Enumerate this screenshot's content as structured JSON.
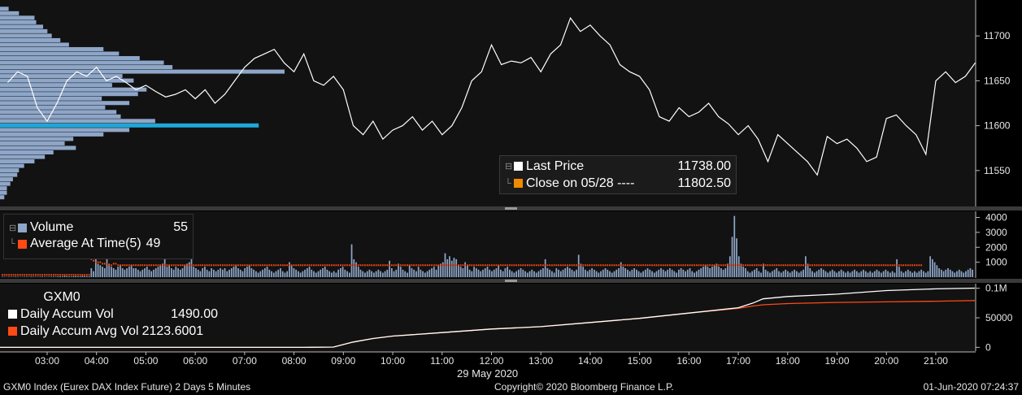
{
  "chart_data": [
    {
      "type": "line",
      "series": [
        {
          "name": "Last Price",
          "color": "#ffffff"
        }
      ],
      "x_ticks": [
        "03:00",
        "04:00",
        "05:00",
        "06:00",
        "07:00",
        "08:00",
        "09:00",
        "10:00",
        "11:00",
        "12:00",
        "13:00",
        "14:00",
        "15:00",
        "16:00",
        "17:00",
        "18:00",
        "19:00",
        "20:00",
        "21:00"
      ],
      "x": [
        2.2,
        2.4,
        2.6,
        2.8,
        3.0,
        3.2,
        3.4,
        3.6,
        3.8,
        4.0,
        4.2,
        4.4,
        4.6,
        4.8,
        5.0,
        5.2,
        5.4,
        5.6,
        5.8,
        6.0,
        6.2,
        6.4,
        6.6,
        6.8,
        7.0,
        7.2,
        7.4,
        7.6,
        7.8,
        8.0,
        8.2,
        8.4,
        8.6,
        8.8,
        9.0,
        9.2,
        9.4,
        9.6,
        9.8,
        10.0,
        10.2,
        10.4,
        10.6,
        10.8,
        11.0,
        11.2,
        11.4,
        11.6,
        11.8,
        12.0,
        12.2,
        12.4,
        12.6,
        12.8,
        13.0,
        13.2,
        13.4,
        13.6,
        13.8,
        14.0,
        14.2,
        14.4,
        14.6,
        14.8,
        15.0,
        15.2,
        15.4,
        15.6,
        15.8,
        16.0,
        16.2,
        16.4,
        16.6,
        16.8,
        17.0,
        17.2,
        17.4,
        17.6,
        17.8,
        18.0,
        18.2,
        18.4,
        18.6,
        18.8,
        19.0,
        19.2,
        19.4,
        19.6,
        19.8,
        20.0,
        20.2,
        20.4,
        20.6,
        20.8,
        21.0,
        21.2,
        21.4,
        21.6,
        21.8
      ],
      "y": [
        11648,
        11660,
        11655,
        11620,
        11605,
        11625,
        11650,
        11660,
        11655,
        11665,
        11650,
        11655,
        11648,
        11640,
        11645,
        11638,
        11632,
        11635,
        11640,
        11630,
        11640,
        11625,
        11635,
        11650,
        11665,
        11675,
        11680,
        11685,
        11670,
        11660,
        11680,
        11650,
        11645,
        11655,
        11640,
        11600,
        11590,
        11605,
        11585,
        11595,
        11600,
        11610,
        11595,
        11605,
        11590,
        11600,
        11620,
        11650,
        11660,
        11690,
        11668,
        11672,
        11670,
        11676,
        11660,
        11680,
        11690,
        11720,
        11705,
        11712,
        11700,
        11690,
        11668,
        11660,
        11655,
        11640,
        11610,
        11605,
        11620,
        11610,
        11615,
        11625,
        11610,
        11602,
        11590,
        11600,
        11585,
        11560,
        11590,
        11580,
        11570,
        11560,
        11545,
        11588,
        11580,
        11585,
        11575,
        11560,
        11565,
        11608,
        11612,
        11600,
        11590,
        11568,
        11650,
        11660,
        11648,
        11655,
        11670
      ],
      "ylim": [
        11510,
        11740
      ],
      "y_ticks": [
        11550,
        11600,
        11650,
        11700
      ],
      "volume_profile": {
        "price_levels": [
          11520,
          11525,
          11530,
          11535,
          11540,
          11545,
          11550,
          11555,
          11560,
          11565,
          11570,
          11575,
          11580,
          11585,
          11590,
          11595,
          11600,
          11605,
          11610,
          11615,
          11620,
          11625,
          11630,
          11635,
          11640,
          11645,
          11650,
          11655,
          11660,
          11665,
          11670,
          11675,
          11680,
          11685,
          11690,
          11695,
          11700,
          11705,
          11710,
          11715,
          11720,
          11725,
          11730
        ],
        "values": [
          5,
          8,
          8,
          12,
          15,
          20,
          22,
          28,
          40,
          52,
          62,
          88,
          75,
          85,
          120,
          150,
          300,
          180,
          140,
          135,
          122,
          150,
          118,
          160,
          170,
          130,
          155,
          142,
          330,
          200,
          190,
          162,
          138,
          120,
          80,
          70,
          60,
          55,
          50,
          42,
          40,
          22,
          10
        ],
        "poc_price": 11600,
        "color": "#8ea6c8",
        "poc_color": "#1ea7d8"
      },
      "legend": {
        "last_price_label": "Last Price",
        "last_price_value": "11738.00",
        "close_label": "Close on 05/28 ----",
        "close_value": "11802.50"
      }
    },
    {
      "type": "bar",
      "series": [
        {
          "name": "Volume",
          "color": "#8ea6c8"
        },
        {
          "name": "Average At Time(5)",
          "color": "#ff4a14"
        }
      ],
      "volume": [
        30,
        25,
        20,
        35,
        30,
        25,
        40,
        30,
        20,
        25,
        30,
        35,
        25,
        40,
        30,
        30,
        25,
        35,
        40,
        30,
        25,
        30,
        35,
        40,
        30,
        50,
        60,
        45,
        80,
        60,
        50,
        45,
        60,
        70,
        55,
        60,
        80,
        70,
        60,
        55,
        600,
        400,
        1200,
        900,
        800,
        700,
        600,
        1200,
        900,
        700,
        600,
        500,
        700,
        800,
        600,
        500,
        600,
        700,
        800,
        600,
        600,
        500,
        400,
        500,
        600,
        700,
        500,
        400,
        500,
        600,
        700,
        800,
        900,
        1200,
        700,
        800,
        600,
        500,
        700,
        600,
        500,
        600,
        800,
        900,
        1000,
        1200,
        700,
        600,
        500,
        400,
        600,
        700,
        500,
        400,
        600,
        500,
        400,
        500,
        600,
        500,
        600,
        400,
        500,
        600,
        700,
        800,
        600,
        500,
        400,
        600,
        700,
        800,
        600,
        500,
        400,
        300,
        400,
        500,
        600,
        700,
        500,
        400,
        300,
        400,
        500,
        600,
        400,
        300,
        400,
        1000,
        800,
        600,
        500,
        400,
        300,
        400,
        500,
        600,
        700,
        500,
        400,
        300,
        400,
        500,
        600,
        700,
        500,
        400,
        300,
        400,
        300,
        500,
        600,
        700,
        500,
        400,
        300,
        2200,
        1200,
        1000,
        700,
        500,
        400,
        300,
        400,
        500,
        400,
        300,
        400,
        500,
        400,
        300,
        400,
        500,
        1100,
        600,
        400,
        500,
        900,
        700,
        500,
        400,
        300,
        800,
        600,
        500,
        400,
        700,
        500,
        400,
        300,
        400,
        500,
        600,
        700,
        500,
        800,
        900,
        1000,
        1600,
        1200,
        1400,
        1100,
        1300,
        1200,
        800,
        700,
        600,
        1000,
        800,
        500,
        400,
        700,
        600,
        500,
        400,
        500,
        600,
        700,
        500,
        400,
        500,
        600,
        800,
        500,
        400,
        600,
        700,
        500,
        400,
        300,
        400,
        500,
        600,
        500,
        400,
        300,
        400,
        500,
        400,
        300,
        400,
        500,
        600,
        1200,
        600,
        500,
        400,
        300,
        600,
        500,
        400,
        500,
        600,
        700,
        600,
        500,
        400,
        500,
        1500,
        900,
        700,
        500,
        400,
        500,
        600,
        500,
        400,
        300,
        400,
        500,
        600,
        500,
        400,
        300,
        400,
        500,
        600,
        1000,
        700,
        600,
        500,
        400,
        500,
        600,
        500,
        400,
        300,
        400,
        500,
        600,
        500,
        400,
        300,
        400,
        500,
        600,
        500,
        400,
        500,
        600,
        500,
        400,
        300,
        500,
        600,
        500,
        400,
        500,
        600,
        400,
        300,
        400,
        500,
        600,
        700,
        800,
        700,
        600,
        700,
        800,
        900,
        700,
        600,
        500,
        600,
        900,
        1400,
        2700,
        4100,
        2600,
        1400,
        900,
        700,
        600,
        400,
        300,
        400,
        500,
        600,
        400,
        300,
        900,
        500,
        400,
        300,
        400,
        500,
        600,
        400,
        300,
        400,
        500,
        400,
        300,
        400,
        500,
        400,
        300,
        400,
        500,
        1400,
        900,
        600,
        400,
        300,
        400,
        500,
        600,
        500,
        400,
        300,
        400,
        500,
        400,
        300,
        400,
        500,
        400,
        300,
        400,
        300,
        400,
        500,
        400,
        300,
        400,
        500,
        400,
        300,
        400,
        300,
        400,
        500,
        400,
        300,
        400,
        500,
        400,
        300,
        400,
        300,
        1200,
        700,
        400,
        300,
        400,
        500,
        400,
        300,
        400,
        300,
        400,
        500,
        400,
        300,
        400,
        1400,
        1200,
        1000,
        800,
        600,
        500,
        400,
        500,
        600,
        500,
        400,
        300,
        400,
        500,
        400,
        300,
        400,
        500,
        600,
        500
      ],
      "average": [
        150,
        150,
        150,
        150,
        150,
        150,
        150,
        150,
        150,
        150,
        150,
        150,
        150,
        150,
        150,
        150,
        150,
        150,
        150,
        150,
        150,
        150,
        150,
        150,
        150,
        150,
        150,
        150,
        150,
        150,
        150,
        150,
        150,
        150,
        150,
        150,
        150,
        150,
        150,
        150,
        1200,
        1100,
        1000,
        1000,
        1000,
        900,
        900,
        900,
        800,
        800,
        900,
        900,
        800,
        800,
        800,
        800,
        800,
        800,
        800,
        800,
        800,
        800,
        800,
        800,
        800,
        800,
        800,
        800,
        800,
        800,
        800,
        800,
        800,
        800,
        800,
        800,
        800,
        800,
        800,
        800,
        800,
        800,
        800,
        800,
        800,
        800,
        800,
        800,
        800,
        800,
        800,
        800,
        800,
        800,
        800,
        800,
        800,
        800,
        800,
        800,
        800,
        800,
        800,
        800,
        800,
        800,
        800,
        800,
        800,
        800,
        800,
        800,
        800,
        800,
        800,
        800,
        800,
        800,
        800,
        800,
        800,
        800,
        800,
        800,
        800,
        800,
        800,
        800,
        800,
        800,
        800,
        800,
        800,
        800,
        800,
        800,
        800,
        800,
        800,
        800,
        800,
        800,
        800,
        800,
        800,
        800,
        800,
        800,
        800,
        800,
        800,
        800,
        800,
        800,
        800,
        800,
        800,
        800,
        800,
        800,
        800,
        800,
        800,
        800,
        800,
        800,
        800,
        800,
        800,
        800,
        800,
        800,
        800,
        800,
        800,
        800,
        800,
        800,
        800,
        800,
        800,
        800,
        800,
        800,
        800,
        800,
        800,
        800,
        800,
        800,
        800,
        800,
        800,
        800,
        800,
        800,
        800,
        800,
        800,
        800,
        800,
        800,
        800,
        800,
        800,
        800,
        800,
        800,
        800,
        800,
        800,
        800,
        800,
        800,
        800,
        800,
        800,
        800,
        800,
        800,
        800,
        800,
        800,
        800,
        800,
        800,
        800,
        800,
        800,
        800,
        800,
        800,
        800,
        800,
        800,
        800,
        800,
        800,
        800,
        800,
        800,
        800,
        800,
        800,
        800,
        800,
        800,
        800,
        800,
        800,
        800,
        800,
        800,
        800,
        800,
        800,
        800,
        800,
        800,
        800,
        800,
        800,
        800,
        800,
        800,
        800,
        800,
        800,
        800,
        800,
        800,
        800,
        800,
        800,
        800,
        800,
        800,
        800,
        800,
        800,
        800,
        800,
        800,
        800,
        800,
        800,
        800,
        800,
        800,
        800,
        800,
        800,
        800,
        800,
        800,
        800,
        800,
        800,
        800,
        800,
        800,
        800,
        800,
        800,
        800,
        800,
        800,
        800,
        800,
        800,
        800,
        800,
        800,
        800,
        800,
        800,
        800,
        800,
        800,
        800,
        800,
        800,
        800,
        800,
        800,
        800,
        800,
        800,
        800,
        800,
        800,
        800,
        800,
        800,
        800,
        800,
        800,
        800,
        800,
        800,
        800,
        800,
        800,
        800,
        800,
        800,
        800,
        800,
        800,
        800,
        800,
        800,
        800,
        800,
        800,
        800,
        800,
        800,
        800,
        800,
        800,
        800,
        800,
        800,
        800,
        800,
        800,
        800,
        800,
        800,
        800,
        800,
        800,
        800,
        800,
        800,
        800,
        800,
        800,
        800,
        800,
        800,
        800,
        800,
        800,
        800,
        800,
        800,
        800,
        800,
        800,
        800,
        800,
        800,
        800,
        800,
        800,
        800,
        800,
        800,
        800,
        800,
        800,
        800,
        800,
        800,
        800,
        800,
        800,
        800,
        800,
        800,
        800,
        800
      ],
      "ylim": [
        0,
        4300
      ],
      "y_ticks": [
        1000,
        2000,
        3000,
        4000
      ],
      "legend": {
        "volume_label": "Volume",
        "volume_value": "55",
        "avg_label": "Average At Time(5)",
        "avg_value": "49"
      }
    },
    {
      "type": "line",
      "series": [
        {
          "name": "Daily Accum Vol",
          "color": "#ffffff"
        },
        {
          "name": "Daily Accum Avg Vol",
          "color": "#ff4a14"
        }
      ],
      "x": [
        2.0,
        3.0,
        4.0,
        5.0,
        6.0,
        7.0,
        7.8,
        8.2,
        8.8,
        9.2,
        9.6,
        10.0,
        11.0,
        12.0,
        13.0,
        14.0,
        15.0,
        16.0,
        17.0,
        17.3,
        17.5,
        18.0,
        19.0,
        20.0,
        21.0,
        21.7,
        22.0
      ],
      "accum_vol": [
        0,
        0,
        0,
        0,
        0,
        0,
        0,
        0,
        500,
        9000,
        15000,
        19000,
        25000,
        31000,
        35000,
        42000,
        49000,
        58000,
        67000,
        75000,
        82000,
        86000,
        90000,
        96000,
        99000,
        100000,
        100200
      ],
      "accum_avg_vol": [
        0,
        0,
        0,
        0,
        0,
        0,
        0,
        0,
        500,
        9000,
        15000,
        19000,
        25000,
        31000,
        35000,
        42000,
        49000,
        58000,
        66000,
        70000,
        72000,
        74000,
        76000,
        77000,
        78000,
        79000,
        79200
      ],
      "ylim": [
        -5000,
        105000
      ],
      "y_ticks": [
        "0",
        "50000",
        "0.1M"
      ],
      "legend": {
        "title": "GXM0",
        "vol_label": "Daily Accum Vol",
        "vol_value": "1490.00",
        "avg_label": "Daily Accum Avg Vol",
        "avg_value": "2123.6001"
      }
    }
  ],
  "footer": {
    "date_label": "29 May 2020",
    "left": "GXM0 Index (Eurex DAX Index Future) 2 Days 5 Minutes",
    "center": "Copyright© 2020 Bloomberg Finance L.P.",
    "right": "01-Jun-2020 07:24:37"
  },
  "colors": {
    "background": "#000000",
    "panel_bg": "#121212",
    "divider": "#555555",
    "axis_text": "#e6e6e6"
  }
}
